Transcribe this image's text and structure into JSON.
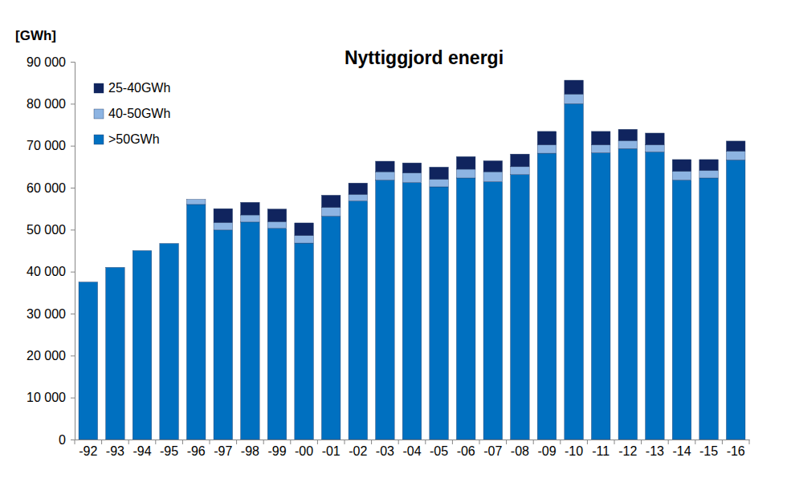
{
  "chart_data": {
    "type": "bar",
    "title": "Nyttiggjord energi",
    "ylabel": "[GWh]",
    "stacked": true,
    "grid": false,
    "legend": "upper left",
    "categories": [
      "-92",
      "-93",
      "-94",
      "-95",
      "-96",
      "-97",
      "-98",
      "-99",
      "-00",
      "-01",
      "-02",
      "-03",
      "-04",
      "-05",
      "-06",
      "-07",
      "-08",
      "-09",
      "-10",
      "-11",
      "-12",
      "-13",
      "-14",
      "-15",
      "-16"
    ],
    "series": [
      {
        "name": ">50GWh",
        "color": "#0070C0",
        "values": [
          37500,
          41000,
          45000,
          46700,
          56000,
          49900,
          51800,
          50300,
          46800,
          53200,
          56800,
          61800,
          61200,
          60200,
          62300,
          61400,
          63100,
          68200,
          80000,
          68300,
          69300,
          68500,
          61800,
          62300,
          66600
        ]
      },
      {
        "name": "40-50GWh",
        "color": "#8DB4E2",
        "values": [
          0,
          0,
          0,
          0,
          1200,
          1800,
          1700,
          1600,
          1800,
          2100,
          1600,
          2000,
          2300,
          1800,
          2100,
          2400,
          1900,
          2000,
          2300,
          1900,
          1900,
          1700,
          2100,
          1800,
          2100
        ]
      },
      {
        "name": "25-40GWh",
        "color": "#10245E",
        "values": [
          0,
          0,
          0,
          0,
          0,
          3300,
          3000,
          3000,
          3000,
          2900,
          2700,
          2500,
          2400,
          2900,
          3000,
          2600,
          3000,
          3200,
          3300,
          3200,
          2700,
          2800,
          2800,
          2600,
          2400
        ]
      }
    ],
    "ylim": [
      0,
      90000
    ],
    "yticks": [
      0,
      {
        "value": 10000,
        "label": "10 000"
      },
      {
        "value": 20000,
        "label": "20 000"
      },
      {
        "value": 30000,
        "label": "30 000"
      },
      {
        "value": 40000,
        "label": "40 000"
      },
      {
        "value": 50000,
        "label": "50 000"
      },
      {
        "value": 60000,
        "label": "60 000"
      },
      {
        "value": 70000,
        "label": "70 000"
      },
      {
        "value": 80000,
        "label": "80 000"
      },
      {
        "value": 90000,
        "label": "90 000"
      }
    ]
  }
}
